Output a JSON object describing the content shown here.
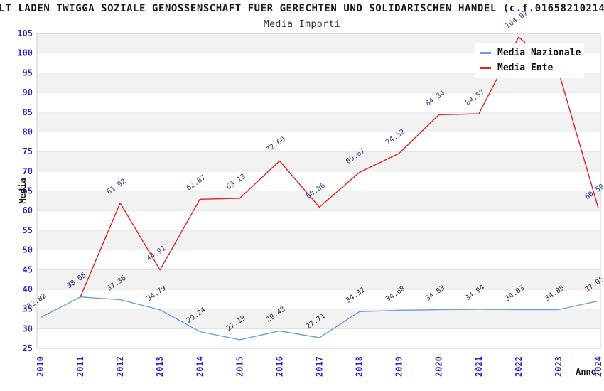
{
  "title": "LT LADEN TWIGGA SOZIALE GENOSSENSCHAFT FUER GERECHTEN UND SOLIDARISCHEN HANDEL (c.f.01658210214",
  "subtitle": "Media Importi",
  "axis_labels": {
    "y": "Media",
    "x": "Anno"
  },
  "colors": {
    "stripe": "#f2f2f2",
    "grid": "#dddddd",
    "frame": "#cccccc",
    "tick_text": "#2222cc",
    "axis_text": "#1a1a1a",
    "nazionale_line": "#6d9fdc",
    "ente_line": "#e02222",
    "nazionale_label": "#333333",
    "ente_label": "#333399"
  },
  "chart_data": {
    "type": "line",
    "title": "Media Importi",
    "xlabel": "Anno",
    "ylabel": "Media",
    "x": [
      2010,
      2011,
      2012,
      2013,
      2014,
      2015,
      2016,
      2017,
      2018,
      2019,
      2020,
      2021,
      2022,
      2023,
      2024
    ],
    "ylim": [
      25,
      105
    ],
    "ytick_step": 5,
    "grid": true,
    "striped_bands": true,
    "legend_position": "top-right",
    "series": [
      {
        "name": "Media Nazionale",
        "color": "#6d9fdc",
        "label_color": "#333333",
        "values": [
          32.82,
          38.05,
          37.36,
          34.79,
          29.24,
          27.19,
          29.43,
          27.71,
          34.32,
          34.68,
          34.83,
          34.94,
          34.83,
          34.85,
          37.05
        ],
        "labels": [
          "32.82",
          "38.05",
          "37.36",
          "34.79",
          "29.24",
          "27.19",
          "29.43",
          "27.71",
          "34.32",
          "34.68",
          "34.83",
          "34.94",
          "34.83",
          "34.85",
          "37.05"
        ]
      },
      {
        "name": "Media Ente",
        "color": "#e02222",
        "label_color": "#333399",
        "values": [
          null,
          38.06,
          61.92,
          44.91,
          62.87,
          63.13,
          72.6,
          60.86,
          69.67,
          74.52,
          84.34,
          84.57,
          104.07,
          95.4,
          60.59
        ],
        "labels": [
          null,
          "38.06",
          "61.92",
          "44.91",
          "62.87",
          "63.13",
          "72.60",
          "60.86",
          "69.67",
          "74.52",
          "84.34",
          "84.57",
          "104.07",
          null,
          "60.59"
        ]
      }
    ]
  }
}
